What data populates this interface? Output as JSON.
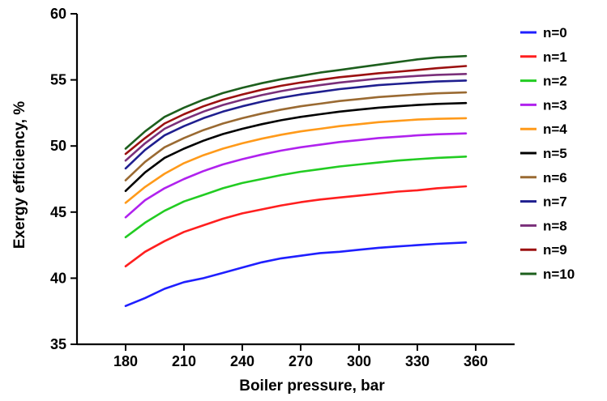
{
  "chart_data": {
    "type": "line",
    "title": "",
    "xlabel": "Boiler pressure, bar",
    "ylabel": "Exergy efficiency, %",
    "xlim": [
      155,
      380
    ],
    "ylim": [
      35,
      60
    ],
    "xticks": [
      180,
      210,
      240,
      270,
      300,
      330,
      360
    ],
    "yticks": [
      35,
      40,
      45,
      50,
      55,
      60
    ],
    "grid": false,
    "legend_position": "right",
    "x": [
      180,
      190,
      200,
      210,
      220,
      230,
      240,
      250,
      260,
      270,
      280,
      290,
      300,
      310,
      320,
      330,
      340,
      355
    ],
    "series": [
      {
        "name": "n=0",
        "color": "#1f1fff",
        "values": [
          37.9,
          38.5,
          39.2,
          39.7,
          40.0,
          40.4,
          40.8,
          41.2,
          41.5,
          41.7,
          41.9,
          42.0,
          42.15,
          42.3,
          42.4,
          42.5,
          42.6,
          42.7
        ]
      },
      {
        "name": "n=1",
        "color": "#ff1f1f",
        "values": [
          40.9,
          42.0,
          42.8,
          43.5,
          44.0,
          44.5,
          44.9,
          45.2,
          45.5,
          45.75,
          45.95,
          46.1,
          46.25,
          46.4,
          46.55,
          46.65,
          46.8,
          46.95
        ]
      },
      {
        "name": "n=2",
        "color": "#22cc22",
        "values": [
          43.1,
          44.2,
          45.1,
          45.8,
          46.3,
          46.8,
          47.2,
          47.5,
          47.8,
          48.05,
          48.25,
          48.45,
          48.6,
          48.75,
          48.9,
          49.0,
          49.1,
          49.2
        ]
      },
      {
        "name": "n=3",
        "color": "#b022ee",
        "values": [
          44.6,
          45.9,
          46.8,
          47.5,
          48.1,
          48.6,
          49.0,
          49.35,
          49.65,
          49.9,
          50.1,
          50.3,
          50.45,
          50.6,
          50.7,
          50.8,
          50.88,
          50.95
        ]
      },
      {
        "name": "n=4",
        "color": "#ff9a1a",
        "values": [
          45.7,
          46.9,
          47.9,
          48.7,
          49.3,
          49.8,
          50.2,
          50.55,
          50.85,
          51.1,
          51.3,
          51.5,
          51.65,
          51.8,
          51.9,
          52.0,
          52.05,
          52.1
        ]
      },
      {
        "name": "n=5",
        "color": "#000000",
        "values": [
          46.6,
          48.0,
          49.1,
          49.8,
          50.4,
          50.9,
          51.3,
          51.65,
          51.95,
          52.2,
          52.4,
          52.6,
          52.75,
          52.9,
          53.0,
          53.1,
          53.18,
          53.25
        ]
      },
      {
        "name": "n=6",
        "color": "#9a6a32",
        "values": [
          47.4,
          48.8,
          49.9,
          50.6,
          51.2,
          51.7,
          52.1,
          52.45,
          52.75,
          53.0,
          53.2,
          53.4,
          53.55,
          53.7,
          53.8,
          53.9,
          53.98,
          54.05
        ]
      },
      {
        "name": "n=7",
        "color": "#1f1f8f",
        "values": [
          48.3,
          49.7,
          50.8,
          51.5,
          52.1,
          52.6,
          53.0,
          53.35,
          53.65,
          53.9,
          54.1,
          54.3,
          54.45,
          54.6,
          54.7,
          54.8,
          54.88,
          54.95
        ]
      },
      {
        "name": "n=8",
        "color": "#7a2f7a",
        "values": [
          48.9,
          50.2,
          51.3,
          52.0,
          52.6,
          53.1,
          53.5,
          53.85,
          54.15,
          54.4,
          54.6,
          54.8,
          54.95,
          55.1,
          55.2,
          55.3,
          55.38,
          55.45
        ]
      },
      {
        "name": "n=9",
        "color": "#9b1010",
        "values": [
          49.4,
          50.6,
          51.7,
          52.4,
          53.0,
          53.5,
          53.9,
          54.25,
          54.55,
          54.8,
          55.0,
          55.2,
          55.35,
          55.5,
          55.62,
          55.75,
          55.88,
          56.05
        ]
      },
      {
        "name": "n=10",
        "color": "#1d5f1d",
        "values": [
          49.8,
          51.1,
          52.2,
          52.9,
          53.5,
          54.0,
          54.4,
          54.75,
          55.05,
          55.3,
          55.55,
          55.75,
          55.95,
          56.15,
          56.35,
          56.55,
          56.7,
          56.8
        ]
      }
    ]
  }
}
